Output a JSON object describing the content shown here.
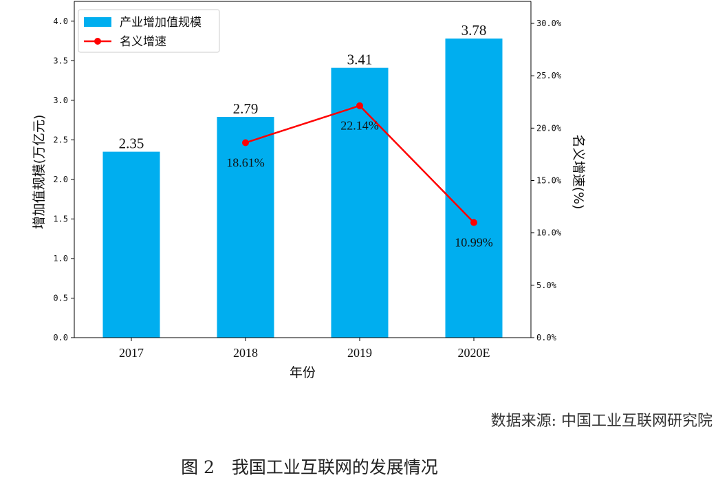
{
  "chart_data": {
    "type": "bar+line",
    "categories": [
      "2017",
      "2018",
      "2019",
      "2020E"
    ],
    "series": [
      {
        "name": "产业增加值规模",
        "type": "bar",
        "axis": "left",
        "color": "#00aeef",
        "values": [
          2.35,
          2.79,
          3.41,
          3.78
        ],
        "labels": [
          "2.35",
          "2.79",
          "3.41",
          "3.78"
        ]
      },
      {
        "name": "名义增速",
        "type": "line",
        "axis": "right",
        "color": "#ff0000",
        "points": [
          {
            "category": "2018",
            "value": 18.61,
            "label": "18.61%"
          },
          {
            "category": "2019",
            "value": 22.14,
            "label": "22.14%"
          },
          {
            "category": "2020E",
            "value": 10.99,
            "label": "10.99%"
          }
        ]
      }
    ],
    "xlabel": "年份",
    "ylabel": "增加值规模(万亿元)",
    "y2label": "名义增速(%)",
    "ylim": [
      0,
      4.25
    ],
    "y2lim": [
      0,
      32.1
    ],
    "yticks": [
      {
        "value": 0.0,
        "label": "0.0"
      },
      {
        "value": 0.5,
        "label": "0.5"
      },
      {
        "value": 1.0,
        "label": "1.0"
      },
      {
        "value": 1.5,
        "label": "1.5"
      },
      {
        "value": 2.0,
        "label": "2.0"
      },
      {
        "value": 2.5,
        "label": "2.5"
      },
      {
        "value": 3.0,
        "label": "3.0"
      },
      {
        "value": 3.5,
        "label": "3.5"
      },
      {
        "value": 4.0,
        "label": "4.0"
      }
    ],
    "y2ticks": [
      {
        "value": 0,
        "label": "0.0%"
      },
      {
        "value": 5,
        "label": "5.0%"
      },
      {
        "value": 10,
        "label": "10.0%"
      },
      {
        "value": 15,
        "label": "15.0%"
      },
      {
        "value": 20,
        "label": "20.0%"
      },
      {
        "value": 25,
        "label": "25.0%"
      },
      {
        "value": 30,
        "label": "30.0%"
      }
    ],
    "legend": "top-left",
    "grid": false
  },
  "source_note": "数据来源: 中国工业互联网研究院",
  "figure_caption": "图 2　我国工业互联网的发展情况"
}
